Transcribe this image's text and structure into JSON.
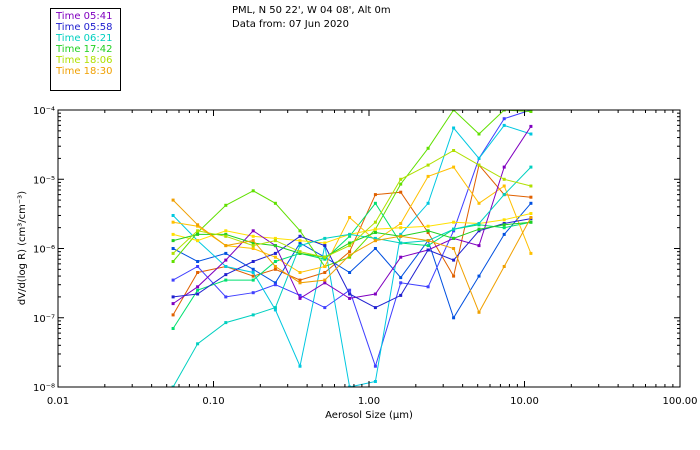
{
  "header": {
    "location": "PML, N 50 22', W 04 08', Alt 0m",
    "data_from": "Data from: 07 Jun 2020"
  },
  "chart_data": {
    "type": "line",
    "xlabel": "Aerosol Size (μm)",
    "ylabel": "dV/d(log R) (cm³/cm⁻³)",
    "xscale": "log",
    "yscale": "log",
    "xlim": [
      0.01,
      100
    ],
    "ylim": [
      1e-08,
      0.0001
    ],
    "x_ticks": [
      {
        "value": 0.01,
        "label": "0.01"
      },
      {
        "value": 0.1,
        "label": "0.10"
      },
      {
        "value": 1,
        "label": "1.00"
      },
      {
        "value": 10,
        "label": "10.00"
      },
      {
        "value": 100,
        "label": "100.00"
      }
    ],
    "y_ticks": [
      {
        "value": 1e-08,
        "label": "10⁻⁸"
      },
      {
        "value": 1e-07,
        "label": "10⁻⁷"
      },
      {
        "value": 1e-06,
        "label": "10⁻⁶"
      },
      {
        "value": 1e-05,
        "label": "10⁻⁵"
      },
      {
        "value": 0.0001,
        "label": "10⁻⁴"
      }
    ],
    "grid": false,
    "legend_position": "top-left, outside plot",
    "series": [
      {
        "name": "Time 05:41",
        "color": "#8000c0",
        "x": [
          0.055,
          0.079,
          0.12,
          0.18,
          0.25,
          0.36,
          0.52,
          0.75,
          1.1,
          1.6,
          2.4,
          3.5,
          5.1,
          7.4,
          11.0
        ],
        "y": [
          1.6e-07,
          2.8e-07,
          6.8e-07,
          1.8e-06,
          1.1e-06,
          1.9e-07,
          3.2e-07,
          1.9e-07,
          2.2e-07,
          7.5e-07,
          9.5e-07,
          1.4e-06,
          1.1e-06,
          1.5e-05,
          5.8e-05
        ]
      },
      {
        "name": "Time 05:58",
        "color": "#2020d0",
        "x": [
          0.055,
          0.079,
          0.12,
          0.18,
          0.25,
          0.36,
          0.52,
          0.75,
          1.1,
          1.6,
          2.4,
          3.5,
          5.1,
          7.4,
          11.0
        ],
        "y": [
          2e-07,
          2.2e-07,
          4.2e-07,
          6.5e-07,
          8.5e-07,
          1.5e-06,
          1.1e-06,
          2.2e-07,
          1.4e-07,
          2.1e-07,
          9.5e-07,
          6.8e-07,
          1.8e-06,
          2.3e-06,
          2.7e-06
        ]
      },
      {
        "name": "Time 06:21",
        "color": "#00d0c0",
        "x": [
          0.055,
          0.079,
          0.12,
          0.18,
          0.25,
          0.36,
          0.52,
          0.75,
          1.1,
          1.6,
          2.4,
          3.5,
          5.1,
          7.4,
          11.0
        ],
        "y": [
          1e-08,
          4.2e-08,
          8.5e-08,
          1.1e-07,
          1.4e-07,
          1.1e-06,
          1.4e-06,
          1.6e-06,
          1.4e-06,
          1.2e-06,
          1.3e-06,
          1.9e-06,
          2.3e-06,
          6e-06,
          1.5e-05
        ]
      },
      {
        "name": "Time 17:42",
        "color": "#20d020",
        "x": [
          0.055,
          0.079,
          0.12,
          0.18,
          0.25,
          0.36,
          0.52,
          0.75,
          1.1,
          1.6,
          2.4,
          3.5,
          5.1,
          7.4,
          11.0
        ],
        "y": [
          1.3e-06,
          1.6e-06,
          1.6e-06,
          1.2e-06,
          1.1e-06,
          8.5e-07,
          7.5e-07,
          1.2e-06,
          1.7e-06,
          1.5e-06,
          1.8e-06,
          1.4e-06,
          1.9e-06,
          2.2e-06,
          2.4e-06
        ]
      },
      {
        "name": "Time 18:06",
        "color": "#b0e000",
        "x": [
          0.055,
          0.079,
          0.12,
          0.18,
          0.25,
          0.36,
          0.52,
          0.75,
          1.1,
          1.6,
          2.4,
          3.5,
          5.1,
          7.4,
          11.0
        ],
        "y": [
          8.5e-07,
          1.8e-06,
          1.5e-06,
          1.1e-06,
          1.3e-06,
          9e-07,
          7.5e-07,
          1.1e-06,
          2.4e-06,
          1e-05,
          1.6e-05,
          2.6e-05,
          1.6e-05,
          1e-05,
          8e-06
        ]
      },
      {
        "name": "Time 18:30",
        "color": "#f0a000",
        "x": [
          0.055,
          0.079,
          0.12,
          0.18,
          0.25,
          0.36,
          0.52,
          0.75,
          1.1,
          1.6,
          2.4,
          3.5,
          5.1,
          7.4,
          11.0
        ],
        "y": [
          5e-06,
          2.2e-06,
          1.1e-06,
          1.3e-06,
          5.5e-07,
          3.2e-07,
          3.5e-07,
          8e-07,
          1.3e-06,
          1.5e-06,
          1.3e-06,
          1e-06,
          1.2e-07,
          5.5e-07,
          2.8e-06
        ]
      }
    ],
    "extra_traces": [
      {
        "color": "#e06000",
        "x": [
          0.055,
          0.079,
          0.12,
          0.18,
          0.25,
          0.36,
          0.52,
          0.75,
          1.1,
          1.6,
          2.4,
          3.5,
          5.1,
          7.4,
          11.0
        ],
        "y": [
          1.1e-07,
          4.5e-07,
          5.5e-07,
          4e-07,
          5e-07,
          3.5e-07,
          4.5e-07,
          9e-07,
          6e-06,
          6.5e-06,
          1.7e-06,
          4e-07,
          1.6e-05,
          6e-06,
          5.5e-06
        ]
      },
      {
        "color": "#0050e0",
        "x": [
          0.055,
          0.079,
          0.12,
          0.18,
          0.25,
          0.36,
          0.52,
          0.75,
          1.1,
          1.6,
          2.4,
          3.5,
          5.1,
          7.4,
          11.0
        ],
        "y": [
          1e-06,
          6.5e-07,
          8.5e-07,
          5e-07,
          3.2e-07,
          1.2e-06,
          7.5e-07,
          4.5e-07,
          1e-06,
          3.8e-07,
          1.3e-06,
          1e-07,
          4e-07,
          1.6e-06,
          4.5e-06
        ]
      },
      {
        "color": "#4040ff",
        "x": [
          0.055,
          0.079,
          0.12,
          0.18,
          0.25,
          0.36,
          0.52,
          0.75,
          1.1,
          1.6,
          2.4,
          3.5,
          5.1,
          7.4,
          11.0
        ],
        "y": [
          3.5e-07,
          5.5e-07,
          2e-07,
          2.3e-07,
          3e-07,
          2.1e-07,
          1.4e-07,
          2.5e-07,
          2e-08,
          3.2e-07,
          2.8e-07,
          1.8e-06,
          2e-05,
          7.5e-05,
          0.0001
        ]
      },
      {
        "color": "#00c8e0",
        "x": [
          0.055,
          0.079,
          0.12,
          0.18,
          0.25,
          0.36,
          0.52,
          0.75,
          1.1,
          1.6,
          2.4,
          3.5,
          5.1,
          7.4,
          11.0
        ],
        "y": [
          3e-06,
          1.3e-06,
          5.5e-07,
          4.5e-07,
          1.3e-07,
          2e-08,
          1.1e-06,
          1e-08,
          1.2e-08,
          1.6e-06,
          4.5e-06,
          5.5e-05,
          2e-05,
          6e-05,
          4.5e-05
        ]
      },
      {
        "color": "#60e000",
        "x": [
          0.055,
          0.079,
          0.12,
          0.18,
          0.25,
          0.36,
          0.52,
          0.75,
          1.1,
          1.6,
          2.4,
          3.5,
          5.1,
          7.4,
          11.0
        ],
        "y": [
          6.5e-07,
          1.7e-06,
          4.2e-06,
          6.8e-06,
          4.5e-06,
          1.8e-06,
          5.5e-07,
          7.5e-07,
          1.9e-06,
          8.5e-06,
          2.8e-05,
          0.0001,
          4.5e-05,
          0.0001,
          9.5e-05
        ]
      },
      {
        "color": "#00e070",
        "x": [
          0.055,
          0.079,
          0.12,
          0.18,
          0.25,
          0.36,
          0.52,
          0.75,
          1.1,
          1.6,
          2.4,
          3.5,
          5.1,
          7.4,
          11.0
        ],
        "y": [
          7e-08,
          2.5e-07,
          3.5e-07,
          3.5e-07,
          6.5e-07,
          8.5e-07,
          7e-07,
          1.5e-06,
          4.5e-06,
          1.2e-06,
          1.1e-06,
          1.9e-06,
          2.2e-06,
          2e-06,
          2.4e-06
        ]
      },
      {
        "color": "#ffc000",
        "x": [
          0.055,
          0.079,
          0.12,
          0.18,
          0.25,
          0.36,
          0.52,
          0.75,
          1.1,
          1.6,
          2.4,
          3.5,
          5.1,
          7.4,
          11.0
        ],
        "y": [
          2.4e-06,
          2.1e-06,
          1.1e-06,
          1e-06,
          7.5e-07,
          4.5e-07,
          5.5e-07,
          2.8e-06,
          1.3e-06,
          2.3e-06,
          1.1e-05,
          1.5e-05,
          4.5e-06,
          8e-06,
          8.5e-07
        ]
      },
      {
        "color": "#ffe000",
        "x": [
          0.055,
          0.079,
          0.12,
          0.18,
          0.25,
          0.36,
          0.52,
          0.75,
          1.1,
          1.6,
          2.4,
          3.5,
          5.1,
          7.4,
          11.0
        ],
        "y": [
          1.6e-06,
          1.3e-06,
          1.8e-06,
          1.5e-06,
          1.4e-06,
          1.3e-06,
          1.2e-06,
          1.6e-06,
          1.9e-06,
          2e-06,
          2.1e-06,
          2.4e-06,
          2.3e-06,
          2.6e-06,
          3.2e-06
        ]
      }
    ]
  }
}
